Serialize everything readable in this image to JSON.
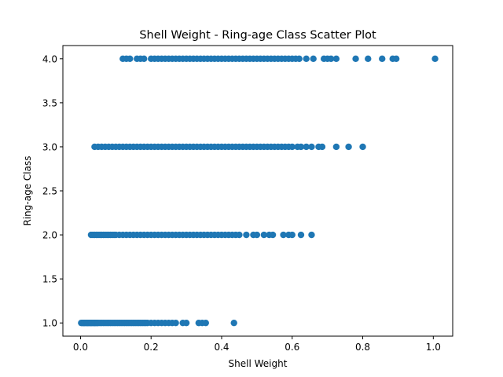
{
  "chart_data": {
    "type": "scatter",
    "title": "Shell Weight - Ring-age Class Scatter Plot",
    "xlabel": "Shell Weight",
    "ylabel": "Ring-age Class",
    "xlim": [
      -0.05,
      1.055
    ],
    "ylim": [
      0.85,
      4.15
    ],
    "xticks": [
      0.0,
      0.2,
      0.4,
      0.6,
      0.8,
      1.0
    ],
    "xtick_labels": [
      "0.0",
      "0.2",
      "0.4",
      "0.6",
      "0.8",
      "1.0"
    ],
    "yticks": [
      1.0,
      1.5,
      2.0,
      2.5,
      3.0,
      3.5,
      4.0
    ],
    "ytick_labels": [
      "1.0",
      "1.5",
      "2.0",
      "2.5",
      "3.0",
      "3.5",
      "4.0"
    ],
    "grid": false,
    "marker_color": "#1f77b4",
    "series": [
      {
        "class": 1.0,
        "x": [
          0.002,
          0.005,
          0.008,
          0.01,
          0.012,
          0.015,
          0.018,
          0.02,
          0.022,
          0.025,
          0.028,
          0.03,
          0.032,
          0.035,
          0.038,
          0.04,
          0.042,
          0.045,
          0.048,
          0.05,
          0.055,
          0.06,
          0.065,
          0.07,
          0.075,
          0.08,
          0.085,
          0.09,
          0.095,
          0.1,
          0.105,
          0.11,
          0.115,
          0.12,
          0.125,
          0.13,
          0.135,
          0.14,
          0.145,
          0.15,
          0.155,
          0.16,
          0.165,
          0.17,
          0.175,
          0.18,
          0.185,
          0.19,
          0.2,
          0.21,
          0.22,
          0.23,
          0.24,
          0.25,
          0.26,
          0.27,
          0.29,
          0.3,
          0.335,
          0.345,
          0.355,
          0.435
        ]
      },
      {
        "class": 2.0,
        "x": [
          0.03,
          0.035,
          0.04,
          0.045,
          0.05,
          0.055,
          0.06,
          0.065,
          0.07,
          0.075,
          0.08,
          0.085,
          0.09,
          0.095,
          0.1,
          0.11,
          0.12,
          0.13,
          0.14,
          0.15,
          0.16,
          0.17,
          0.18,
          0.19,
          0.2,
          0.21,
          0.22,
          0.23,
          0.24,
          0.25,
          0.26,
          0.27,
          0.28,
          0.29,
          0.3,
          0.31,
          0.32,
          0.33,
          0.34,
          0.35,
          0.36,
          0.37,
          0.38,
          0.39,
          0.4,
          0.41,
          0.42,
          0.43,
          0.44,
          0.45,
          0.47,
          0.49,
          0.5,
          0.52,
          0.535,
          0.545,
          0.575,
          0.59,
          0.6,
          0.625,
          0.655
        ]
      },
      {
        "class": 3.0,
        "x": [
          0.04,
          0.05,
          0.06,
          0.07,
          0.08,
          0.09,
          0.1,
          0.11,
          0.12,
          0.13,
          0.14,
          0.15,
          0.16,
          0.17,
          0.18,
          0.19,
          0.2,
          0.21,
          0.22,
          0.23,
          0.24,
          0.25,
          0.26,
          0.27,
          0.28,
          0.29,
          0.3,
          0.31,
          0.32,
          0.33,
          0.34,
          0.35,
          0.36,
          0.37,
          0.38,
          0.39,
          0.4,
          0.41,
          0.42,
          0.43,
          0.44,
          0.45,
          0.46,
          0.47,
          0.48,
          0.49,
          0.5,
          0.51,
          0.52,
          0.53,
          0.54,
          0.55,
          0.56,
          0.57,
          0.58,
          0.59,
          0.6,
          0.615,
          0.625,
          0.64,
          0.655,
          0.675,
          0.685,
          0.725,
          0.76,
          0.8
        ]
      },
      {
        "class": 4.0,
        "x": [
          0.12,
          0.13,
          0.14,
          0.16,
          0.17,
          0.18,
          0.2,
          0.21,
          0.22,
          0.23,
          0.24,
          0.25,
          0.26,
          0.27,
          0.28,
          0.29,
          0.3,
          0.31,
          0.32,
          0.33,
          0.34,
          0.35,
          0.36,
          0.37,
          0.38,
          0.39,
          0.4,
          0.41,
          0.42,
          0.43,
          0.44,
          0.45,
          0.46,
          0.47,
          0.48,
          0.49,
          0.5,
          0.51,
          0.52,
          0.53,
          0.54,
          0.55,
          0.56,
          0.57,
          0.58,
          0.59,
          0.6,
          0.61,
          0.62,
          0.64,
          0.66,
          0.69,
          0.7,
          0.71,
          0.725,
          0.78,
          0.815,
          0.855,
          0.885,
          0.895,
          1.005
        ]
      }
    ]
  }
}
